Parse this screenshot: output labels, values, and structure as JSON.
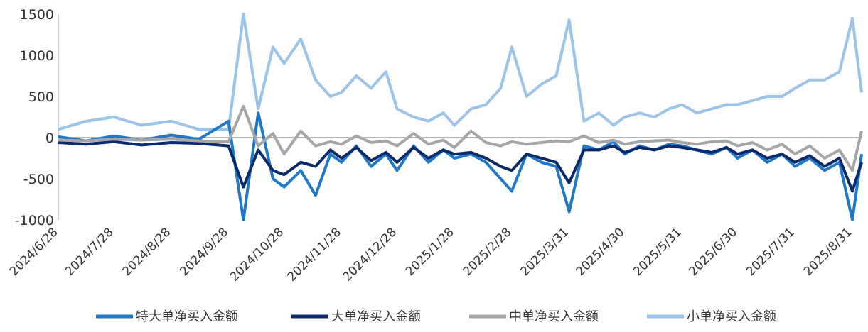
{
  "chart_data": {
    "type": "line",
    "title": "",
    "xlabel": "",
    "ylabel": "",
    "ylim": [
      -1000,
      1500
    ],
    "y_ticks": [
      1500,
      1000,
      500,
      0,
      -500,
      -1000
    ],
    "x_tick_labels": [
      "2024/6/28",
      "2024/7/28",
      "2024/8/28",
      "2024/9/28",
      "2024/10/28",
      "2024/11/28",
      "2024/12/28",
      "2025/1/28",
      "2025/2/28",
      "2025/3/31",
      "2025/4/30",
      "2025/5/31",
      "2025/6/30",
      "2025/7/31",
      "2025/8/31"
    ],
    "legend_position": "bottom",
    "grid": false,
    "x": [
      "2024/6/28",
      "2024/7/13",
      "2024/7/28",
      "2024/8/12",
      "2024/8/28",
      "2024/9/12",
      "2024/9/28",
      "2024/10/6",
      "2024/10/14",
      "2024/10/22",
      "2024/10/28",
      "2024/11/6",
      "2024/11/14",
      "2024/11/22",
      "2024/11/28",
      "2024/12/6",
      "2024/12/14",
      "2024/12/22",
      "2024/12/28",
      "2025/1/6",
      "2025/1/14",
      "2025/1/22",
      "2025/1/28",
      "2025/2/6",
      "2025/2/14",
      "2025/2/22",
      "2025/2/28",
      "2025/3/8",
      "2025/3/16",
      "2025/3/24",
      "2025/3/31",
      "2025/4/8",
      "2025/4/16",
      "2025/4/24",
      "2025/4/30",
      "2025/5/8",
      "2025/5/16",
      "2025/5/24",
      "2025/5/31",
      "2025/6/8",
      "2025/6/16",
      "2025/6/24",
      "2025/6/30",
      "2025/7/8",
      "2025/7/16",
      "2025/7/24",
      "2025/7/31",
      "2025/8/8",
      "2025/8/16",
      "2025/8/24",
      "2025/8/31",
      "2025/9/5"
    ],
    "series": [
      {
        "name": "特大单净买入金额",
        "color": "#1F78C8",
        "values": [
          10,
          -40,
          20,
          -30,
          30,
          -20,
          200,
          -1000,
          300,
          -500,
          -600,
          -400,
          -700,
          -200,
          -300,
          -100,
          -350,
          -200,
          -400,
          -100,
          -300,
          -150,
          -250,
          -200,
          -300,
          -500,
          -650,
          -200,
          -300,
          -350,
          -900,
          -100,
          -150,
          -50,
          -200,
          -100,
          -150,
          -80,
          -100,
          -150,
          -200,
          -120,
          -250,
          -150,
          -300,
          -200,
          -350,
          -250,
          -400,
          -300,
          -1000,
          -200
        ]
      },
      {
        "name": "大单净买入金额",
        "color": "#0B2A6B",
        "values": [
          -60,
          -80,
          -50,
          -90,
          -60,
          -70,
          -100,
          -600,
          -150,
          -400,
          -450,
          -300,
          -350,
          -150,
          -250,
          -120,
          -280,
          -180,
          -300,
          -120,
          -250,
          -150,
          -200,
          -180,
          -250,
          -350,
          -400,
          -200,
          -250,
          -300,
          -550,
          -150,
          -150,
          -100,
          -180,
          -120,
          -150,
          -100,
          -120,
          -150,
          -180,
          -120,
          -200,
          -150,
          -250,
          -200,
          -300,
          -220,
          -350,
          -250,
          -650,
          -300
        ]
      },
      {
        "name": "中单净买入金额",
        "color": "#A6A6A6",
        "values": [
          -30,
          -40,
          -20,
          -30,
          -20,
          -40,
          -50,
          380,
          -100,
          50,
          -200,
          80,
          -100,
          -50,
          -80,
          20,
          -60,
          -40,
          -100,
          50,
          -80,
          -30,
          -120,
          80,
          -60,
          -100,
          -50,
          -80,
          -60,
          -40,
          -50,
          20,
          -60,
          -30,
          -80,
          -50,
          -40,
          -30,
          -60,
          -80,
          -50,
          -40,
          -100,
          -60,
          -150,
          -80,
          -200,
          -100,
          -250,
          -150,
          -400,
          80
        ]
      },
      {
        "name": "小单净买入金额",
        "color": "#9CC3E8",
        "values": [
          100,
          200,
          250,
          150,
          200,
          100,
          100,
          1500,
          350,
          1100,
          900,
          1200,
          700,
          500,
          550,
          750,
          600,
          800,
          350,
          250,
          200,
          300,
          150,
          350,
          400,
          600,
          1100,
          500,
          650,
          750,
          1430,
          200,
          300,
          150,
          250,
          300,
          250,
          350,
          400,
          300,
          350,
          400,
          400,
          450,
          500,
          500,
          600,
          700,
          700,
          800,
          1450,
          550
        ]
      }
    ]
  }
}
